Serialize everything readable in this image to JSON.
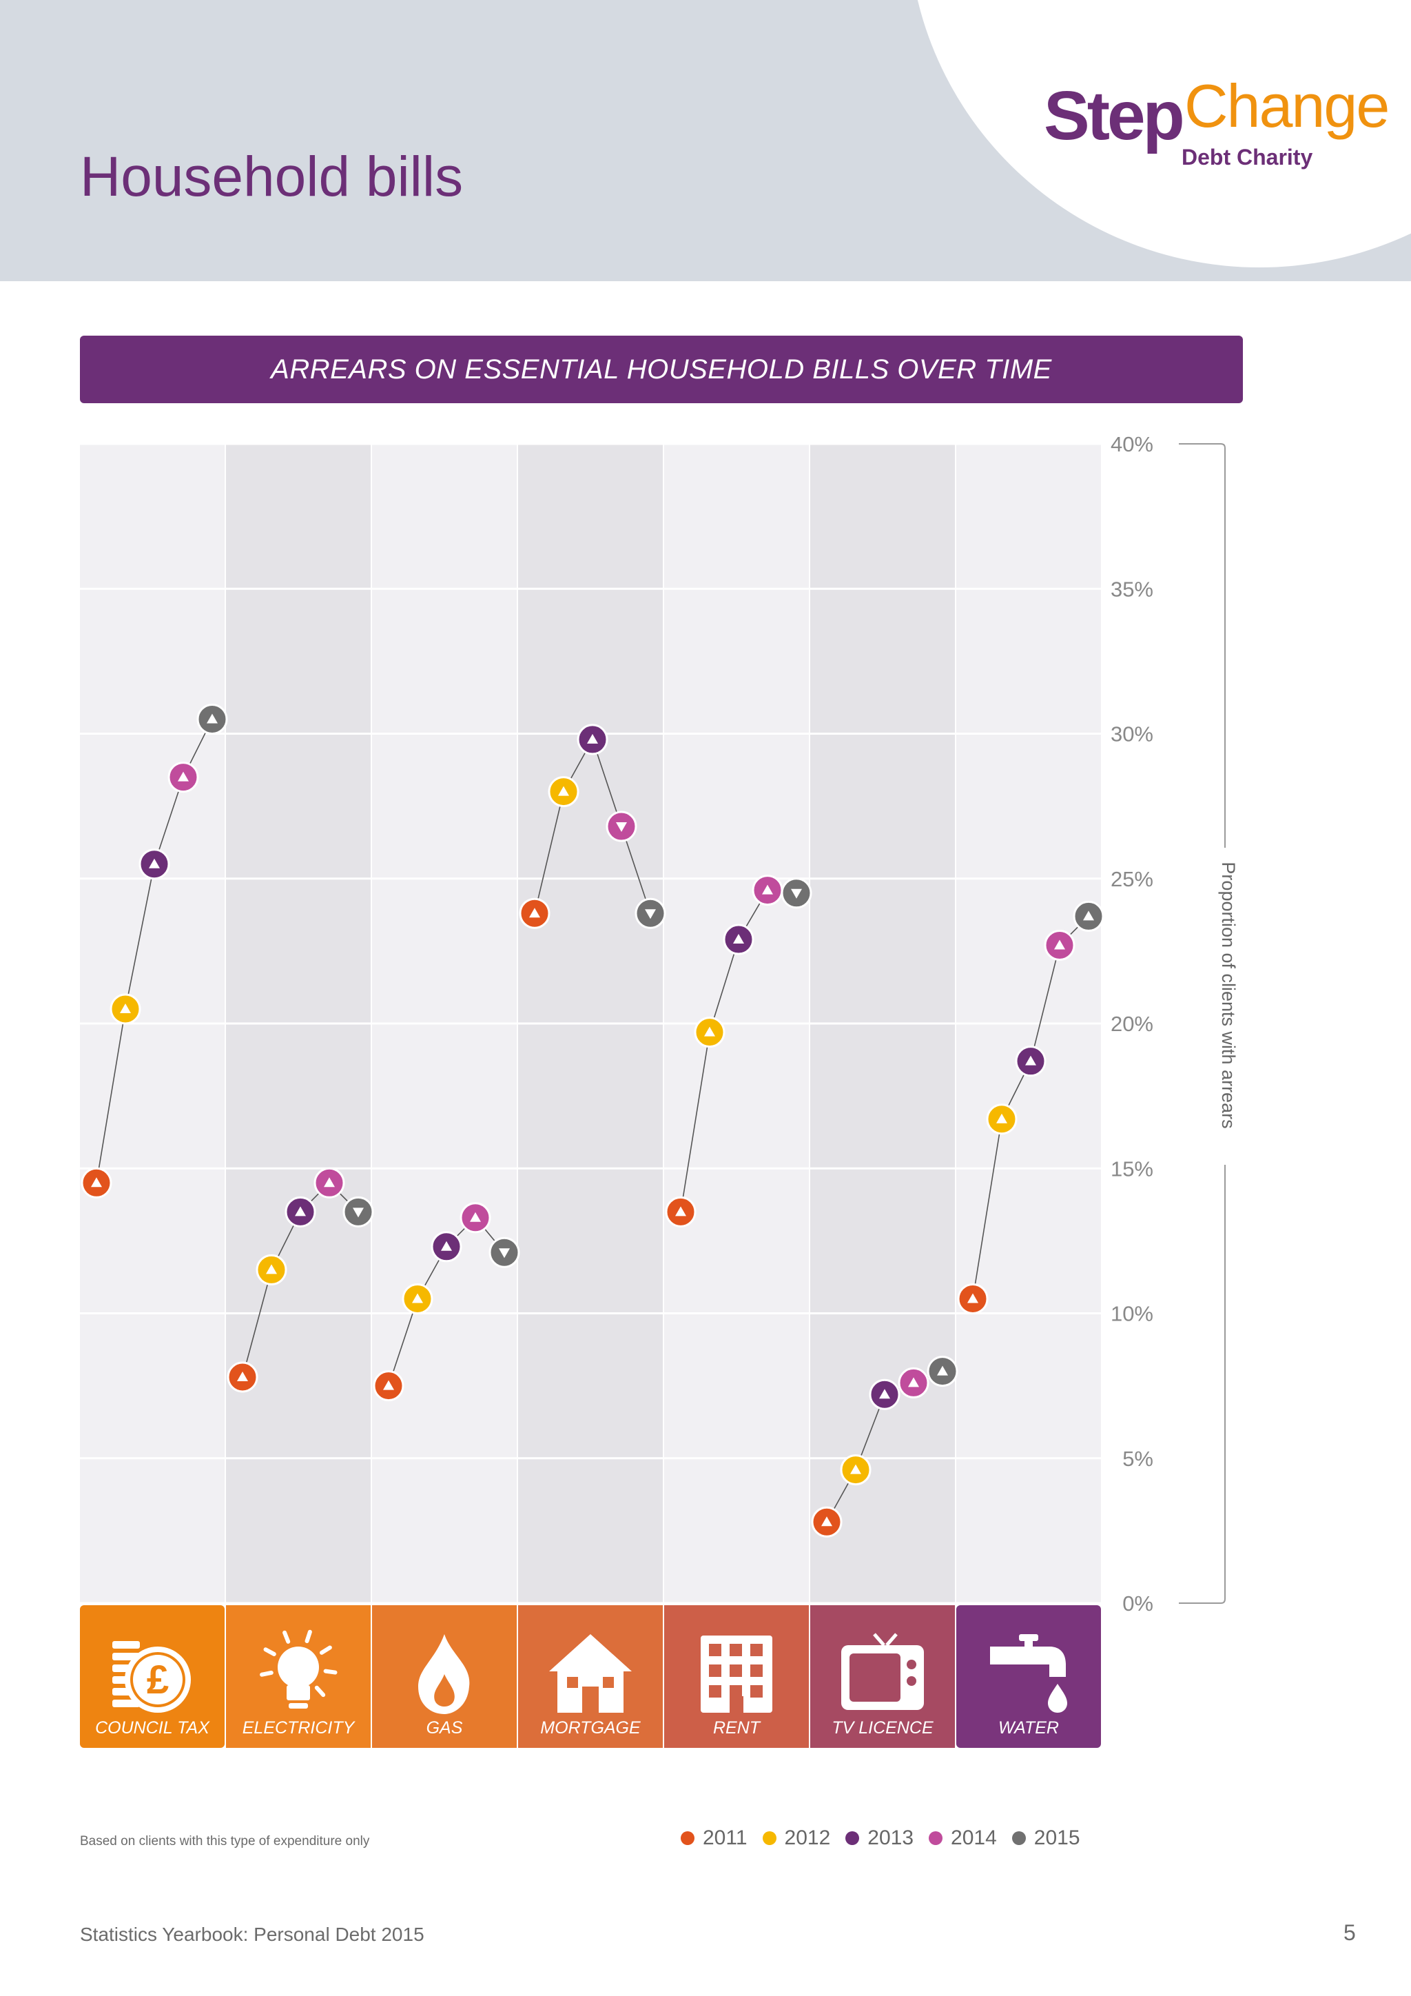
{
  "page": {
    "title": "Household bills",
    "footnote": "Based on clients with this type of expenditure only",
    "footer_title": "Statistics Yearbook: Personal Debt 2015",
    "page_number": "5"
  },
  "logo": {
    "word_step": "Step",
    "word_change": "Change",
    "subtitle": "Debt Charity"
  },
  "colors": {
    "brand_purple": "#6c2f77",
    "brand_orange": "#f0920f",
    "header_bg": "#d5dae1",
    "y2011": "#e2531c",
    "y2012": "#f6b800",
    "y2013": "#6c2f77",
    "y2014": "#c04c9c",
    "y2015": "#707070",
    "category_colors": [
      "#ee8411",
      "#ee8322",
      "#e77a2c",
      "#dc6e3a",
      "#cd5f48",
      "#a64a62",
      "#7a357c"
    ]
  },
  "chart_data": {
    "type": "line",
    "title": "ARREARS ON ESSENTIAL HOUSEHOLD BILLS OVER TIME",
    "ylabel": "Proportion of clients with arrears",
    "ylim": [
      0,
      40
    ],
    "yticks": [
      "0%",
      "5%",
      "10%",
      "15%",
      "20%",
      "25%",
      "30%",
      "35%",
      "40%"
    ],
    "grid": true,
    "legend_position": "bottom-right",
    "years": [
      "2011",
      "2012",
      "2013",
      "2014",
      "2015"
    ],
    "categories": [
      {
        "label": "COUNCIL TAX",
        "icon": "coins-pound-icon",
        "values": [
          14.5,
          20.5,
          25.5,
          28.5,
          30.5
        ],
        "direction": [
          "up",
          "up",
          "up",
          "up",
          "up"
        ]
      },
      {
        "label": "ELECTRICITY",
        "icon": "lightbulb-icon",
        "values": [
          7.8,
          11.5,
          13.5,
          14.5,
          13.5
        ],
        "direction": [
          "up",
          "up",
          "up",
          "up",
          "down"
        ]
      },
      {
        "label": "GAS",
        "icon": "flame-icon",
        "values": [
          7.5,
          10.5,
          12.3,
          13.3,
          12.1
        ],
        "direction": [
          "up",
          "up",
          "up",
          "up",
          "down"
        ]
      },
      {
        "label": "MORTGAGE",
        "icon": "house-icon",
        "values": [
          23.8,
          28.0,
          29.8,
          26.8,
          23.8
        ],
        "direction": [
          "up",
          "up",
          "up",
          "down",
          "down"
        ]
      },
      {
        "label": "RENT",
        "icon": "building-icon",
        "values": [
          13.5,
          19.7,
          22.9,
          24.6,
          24.5
        ],
        "direction": [
          "up",
          "up",
          "up",
          "up",
          "down"
        ]
      },
      {
        "label": "TV LICENCE",
        "icon": "television-icon",
        "values": [
          2.8,
          4.6,
          7.2,
          7.6,
          8.0
        ],
        "direction": [
          "up",
          "up",
          "up",
          "up",
          "up"
        ]
      },
      {
        "label": "WATER",
        "icon": "tap-icon",
        "values": [
          10.5,
          16.7,
          18.7,
          22.7,
          23.7
        ],
        "direction": [
          "up",
          "up",
          "up",
          "up",
          "up"
        ]
      }
    ]
  }
}
